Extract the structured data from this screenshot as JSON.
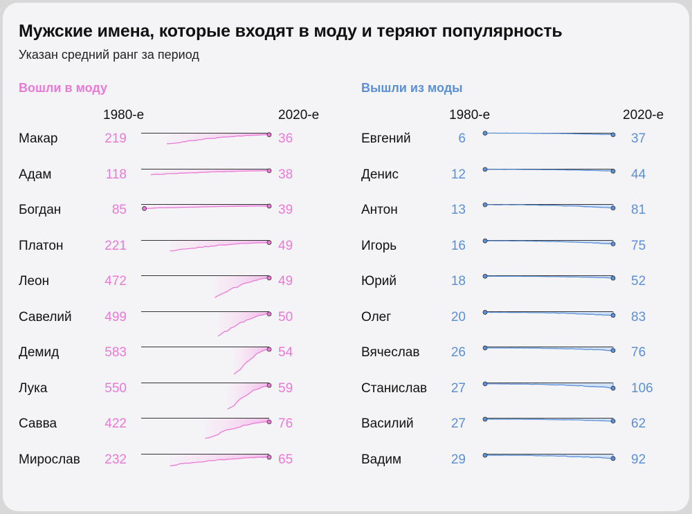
{
  "title": "Мужские имена, которые входят в моду и теряют популярность",
  "subtitle": "Указан средний ранг за период",
  "colors": {
    "rising": "#e87ad6",
    "rising_fill_light": "#fbe7f7",
    "rising_fill_strong": "#f3a6e6",
    "falling": "#5b8fd6",
    "falling_fill": "#cfe0f8",
    "baseline": "#333333"
  },
  "chart_data": [
    {
      "type": "area",
      "title": "Вошли в моду",
      "start_label": "1980-е",
      "end_label": "2020-е",
      "y_scale": "rank (inverted)",
      "rows": [
        {
          "name": "Макар",
          "start": 219,
          "end": 36
        },
        {
          "name": "Адам",
          "start": 118,
          "end": 38
        },
        {
          "name": "Богдан",
          "start": 85,
          "end": 39
        },
        {
          "name": "Платон",
          "start": 221,
          "end": 49
        },
        {
          "name": "Леон",
          "start": 472,
          "end": 49
        },
        {
          "name": "Савелий",
          "start": 499,
          "end": 50
        },
        {
          "name": "Демид",
          "start": 583,
          "end": 54
        },
        {
          "name": "Лука",
          "start": 550,
          "end": 59
        },
        {
          "name": "Савва",
          "start": 422,
          "end": 76
        },
        {
          "name": "Мирослав",
          "start": 232,
          "end": 65
        }
      ]
    },
    {
      "type": "area",
      "title": "Вышли из моды",
      "start_label": "1980-е",
      "end_label": "2020-е",
      "y_scale": "rank (inverted)",
      "rows": [
        {
          "name": "Евгений",
          "start": 6,
          "end": 37
        },
        {
          "name": "Денис",
          "start": 12,
          "end": 44
        },
        {
          "name": "Антон",
          "start": 13,
          "end": 81
        },
        {
          "name": "Игорь",
          "start": 16,
          "end": 75
        },
        {
          "name": "Юрий",
          "start": 18,
          "end": 52
        },
        {
          "name": "Олег",
          "start": 20,
          "end": 83
        },
        {
          "name": "Вячеслав",
          "start": 26,
          "end": 76
        },
        {
          "name": "Станислав",
          "start": 27,
          "end": 106
        },
        {
          "name": "Василий",
          "start": 27,
          "end": 62
        },
        {
          "name": "Вадим",
          "start": 29,
          "end": 92
        }
      ]
    }
  ]
}
